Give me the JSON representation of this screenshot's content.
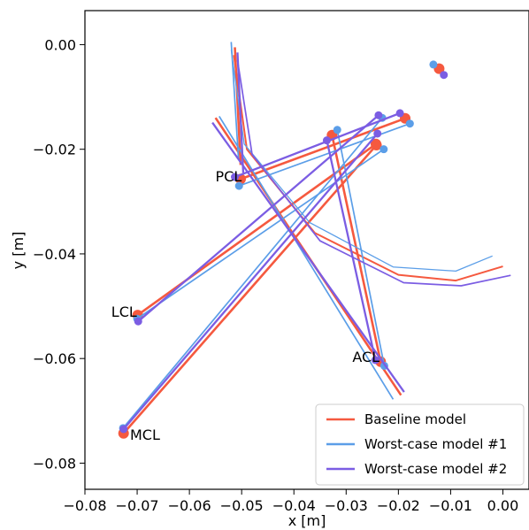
{
  "chart_data": {
    "type": "line",
    "title": "",
    "xlabel": "x [m]",
    "ylabel": "y [m]",
    "xlim": [
      -0.08,
      0.005
    ],
    "ylim": [
      -0.085,
      0.0065
    ],
    "xticks": [
      -0.08,
      -0.07,
      -0.06,
      -0.05,
      -0.04,
      -0.03,
      -0.02,
      -0.01,
      0.0
    ],
    "xtick_labels": [
      "−0.08",
      "−0.07",
      "−0.06",
      "−0.05",
      "−0.04",
      "−0.03",
      "−0.02",
      "−0.01",
      "0.00"
    ],
    "yticks": [
      0.0,
      -0.02,
      -0.04,
      -0.06,
      -0.08
    ],
    "ytick_labels": [
      "0.00",
      "−0.02",
      "−0.04",
      "−0.06",
      "−0.08"
    ],
    "grid": false,
    "legend_position": "bottom-right",
    "annotations": [
      {
        "text": "PCL",
        "x": -0.0525,
        "y": -0.0253
      },
      {
        "text": "LCL",
        "x": -0.0725,
        "y": -0.0512
      },
      {
        "text": "ACL",
        "x": -0.0262,
        "y": -0.0598
      },
      {
        "text": "MCL",
        "x": -0.0685,
        "y": -0.0747
      }
    ],
    "series": [
      {
        "name": "Baseline model",
        "color": "#f5593f",
        "width": 2.6,
        "ligaments": [
          {
            "label": "PCL",
            "points": [
              [
                -0.0502,
                -0.0257
              ],
              [
                -0.0187,
                -0.0141
              ]
            ]
          },
          {
            "label": "LCL",
            "points": [
              [
                -0.0699,
                -0.0517
              ],
              [
                -0.0243,
                -0.019
              ]
            ]
          },
          {
            "label": "ACL",
            "points": [
              [
                -0.0327,
                -0.0173
              ],
              [
                -0.0234,
                -0.0606
              ]
            ]
          },
          {
            "label": "MCL",
            "points": [
              [
                -0.0726,
                -0.0743
              ],
              [
                -0.0242,
                -0.0192
              ]
            ]
          }
        ],
        "femur_lines": [
          [
            [
              -0.055,
              -0.014
            ],
            [
              -0.0195,
              -0.067
            ]
          ],
          [
            [
              -0.0513,
              -0.0005
            ],
            [
              -0.0502,
              -0.023
            ]
          ]
        ],
        "femur_arc": [
          [
            -0.0515,
            -0.002
          ],
          [
            -0.049,
            -0.02
          ],
          [
            -0.036,
            -0.036
          ],
          [
            -0.02,
            -0.044
          ],
          [
            -0.009,
            -0.0451
          ],
          [
            0.0,
            -0.0424
          ]
        ],
        "extra_marker": [
          -0.0122,
          -0.0046
        ],
        "marker_radius": 6
      },
      {
        "name": "Worst-case model #1",
        "color": "#5b9ee8",
        "width": 1.7,
        "ligaments": [
          {
            "label": "PCL",
            "points": [
              [
                -0.0505,
                -0.027
              ],
              [
                -0.0178,
                -0.0151
              ]
            ]
          },
          {
            "label": "LCL",
            "points": [
              [
                -0.07,
                -0.0524
              ],
              [
                -0.0228,
                -0.02
              ]
            ]
          },
          {
            "label": "ACL",
            "points": [
              [
                -0.0317,
                -0.0163
              ],
              [
                -0.0227,
                -0.0614
              ]
            ]
          },
          {
            "label": "MCL",
            "points": [
              [
                -0.0727,
                -0.0733
              ],
              [
                -0.0231,
                -0.014
              ]
            ]
          }
        ],
        "femur_lines": [
          [
            [
              -0.0543,
              -0.0137
            ],
            [
              -0.021,
              -0.0678
            ]
          ],
          [
            [
              -0.052,
              0.0005
            ],
            [
              -0.0506,
              -0.022
            ]
          ]
        ],
        "femur_arc": [
          [
            -0.052,
            -0.001
          ],
          [
            -0.0495,
            -0.019
          ],
          [
            -0.037,
            -0.034
          ],
          [
            -0.021,
            -0.0425
          ],
          [
            -0.009,
            -0.0433
          ],
          [
            -0.002,
            -0.0404
          ]
        ],
        "extra_marker": [
          -0.0133,
          -0.0038
        ],
        "marker_radius": 4.5
      },
      {
        "name": "Worst-case model #2",
        "color": "#7b5de3",
        "width": 2.3,
        "ligaments": [
          {
            "label": "PCL",
            "points": [
              [
                -0.0513,
                -0.0253
              ],
              [
                -0.0197,
                -0.0131
              ]
            ]
          },
          {
            "label": "LCL",
            "points": [
              [
                -0.0698,
                -0.0529
              ],
              [
                -0.0238,
                -0.0135
              ]
            ]
          },
          {
            "label": "ACL",
            "points": [
              [
                -0.0337,
                -0.0183
              ],
              [
                -0.0244,
                -0.0603
              ]
            ]
          },
          {
            "label": "MCL",
            "points": [
              [
                -0.0726,
                -0.0735
              ],
              [
                -0.024,
                -0.017
              ]
            ]
          }
        ],
        "femur_lines": [
          [
            [
              -0.0556,
              -0.0149
            ],
            [
              -0.0189,
              -0.0664
            ]
          ],
          [
            [
              -0.0508,
              -0.0015
            ],
            [
              -0.0497,
              -0.0245
            ]
          ]
        ],
        "femur_arc": [
          [
            -0.0508,
            -0.003
          ],
          [
            -0.048,
            -0.021
          ],
          [
            -0.035,
            -0.0375
          ],
          [
            -0.019,
            -0.0455
          ],
          [
            -0.008,
            -0.0461
          ],
          [
            0.0015,
            -0.0441
          ]
        ],
        "extra_marker": [
          -0.0113,
          -0.0058
        ],
        "marker_radius": 4.5
      }
    ]
  }
}
